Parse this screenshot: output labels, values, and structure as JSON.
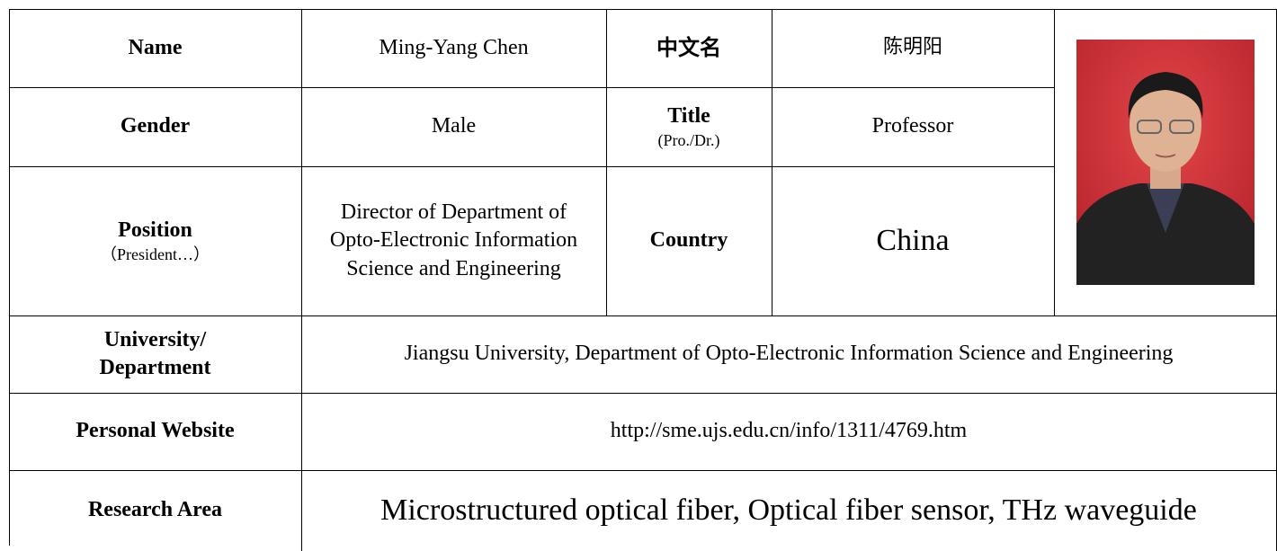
{
  "table": {
    "rows": [
      [
        {
          "text": "Name"
        },
        {
          "text": "Ming-Yang Chen"
        },
        {
          "text": "中文名"
        },
        {
          "text": "陈明阳"
        }
      ],
      [
        {
          "text": "Gender"
        },
        {
          "text": "Male"
        },
        {
          "text": "Title",
          "note": "(Pro./Dr.)"
        },
        {
          "text": "Professor"
        }
      ],
      [
        {
          "text": "Position",
          "note": "（President…）"
        },
        {
          "text": "Director of Department of Opto-Electronic Information Science and Engineering"
        },
        {
          "text": "Country"
        },
        {
          "text": "China"
        }
      ],
      [
        {
          "text": "University/\nDepartment"
        },
        {
          "text": "Jiangsu University, Department of Opto-Electronic Information Science and Engineering"
        }
      ],
      [
        {
          "text": "Personal Website"
        },
        {
          "text": "http://sme.ujs.edu.cn/info/1311/4769.htm"
        }
      ],
      [
        {
          "text": "Research Area"
        },
        {
          "text": "Microstructured optical fiber, Optical fiber sensor, THz waveguide"
        }
      ]
    ]
  }
}
